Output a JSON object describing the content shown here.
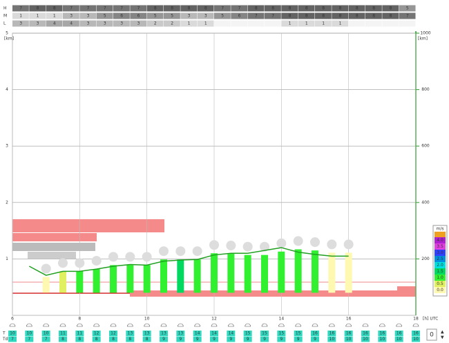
{
  "chart_data": {
    "type": "meteogram",
    "xlim": [
      6,
      18
    ],
    "xticks": [
      6,
      8,
      10,
      12,
      14,
      16,
      18
    ],
    "x_unit": "[h] UTC",
    "ylim": [
      0,
      5
    ],
    "yticks": [
      1,
      2,
      3,
      4,
      5
    ],
    "y_unit": "[km]",
    "y2lim": [
      0,
      1000
    ],
    "y2ticks": [
      200,
      400,
      600,
      800,
      1000
    ],
    "y2_unit": "[km]",
    "grid": true,
    "cloud_rows": [
      {
        "name": "H",
        "values": [
          7,
          8,
          8,
          7,
          7,
          7,
          7,
          7,
          8,
          8,
          8,
          8,
          7,
          7,
          8,
          8,
          8,
          8,
          8,
          8,
          8,
          8,
          8,
          5
        ]
      },
      {
        "name": "M",
        "values": [
          1,
          1,
          1,
          3,
          3,
          5,
          6,
          6,
          5,
          5,
          3,
          3,
          5,
          6,
          7,
          7,
          8,
          8,
          8,
          8,
          8,
          8,
          8,
          7
        ]
      },
      {
        "name": "L",
        "values": [
          3,
          3,
          4,
          4,
          3,
          3,
          3,
          3,
          2,
          2,
          1,
          1,
          null,
          null,
          null,
          null,
          1,
          1,
          1,
          1,
          null,
          null,
          null,
          null
        ]
      }
    ],
    "bars": {
      "x": [
        7,
        7.5,
        8,
        8.5,
        9,
        9.5,
        10,
        10.5,
        11,
        11.5,
        12,
        12.5,
        13,
        13.5,
        14,
        14.5,
        15,
        15.5,
        16
      ],
      "values": [
        0.68,
        0.78,
        0.78,
        0.82,
        0.89,
        0.89,
        0.89,
        0.99,
        0.99,
        0.99,
        1.1,
        1.09,
        1.07,
        1.07,
        1.13,
        1.17,
        1.15,
        1.11,
        1.11
      ],
      "base": 0.4,
      "speeds": [
        0.2,
        0.7,
        1.1,
        1.2,
        1.3,
        1.3,
        1.3,
        1.3,
        1.7,
        1.3,
        1.3,
        1.3,
        1.3,
        1.3,
        1.2,
        1.1,
        1.0,
        0.3,
        0.2
      ]
    },
    "line": {
      "color": "#1fa01f",
      "x": [
        6.5,
        7,
        7.5,
        8,
        8.5,
        9,
        9.5,
        10,
        10.5,
        11,
        11.5,
        12,
        12.5,
        13,
        13.5,
        14,
        14.5,
        15,
        15.5,
        16
      ],
      "values": [
        0.87,
        0.71,
        0.78,
        0.78,
        0.82,
        0.87,
        0.9,
        0.89,
        0.96,
        0.98,
        0.99,
        1.07,
        1.1,
        1.1,
        1.15,
        1.2,
        1.12,
        1.08,
        1.05,
        1.05
      ]
    },
    "legend": {
      "title": "m/s",
      "items": [
        {
          "value": 4,
          "label": "4.0"
        },
        {
          "value": 3.5,
          "label": "3.5"
        },
        {
          "value": 3,
          "label": "3.0"
        },
        {
          "value": 2.5,
          "label": "2.5"
        },
        {
          "value": 2,
          "label": "2.0"
        },
        {
          "value": 1.5,
          "label": "1.5"
        },
        {
          "value": 1,
          "label": "1.0"
        },
        {
          "value": 0.5,
          "label": "0.5"
        },
        {
          "value": 0,
          "label": "0.0"
        }
      ],
      "colors": [
        "#b020d0",
        "#e040e0",
        "#3040ff",
        "#0090e0",
        "#00e0e0",
        "#00d860",
        "#30f030",
        "#e0f060",
        "#fff8b0"
      ]
    },
    "temps": {
      "x": [
        6,
        6.5,
        7,
        7.5,
        8,
        8.5,
        9,
        9.5,
        10,
        10.5,
        11,
        11.5,
        12,
        12.5,
        13,
        13.5,
        14,
        14.5,
        15,
        15.5,
        16,
        16.5,
        17,
        17.5,
        18
      ],
      "rows": [
        {
          "name": "T",
          "values": [
            10,
            10,
            10,
            11,
            11,
            12,
            12,
            13,
            13,
            13,
            13,
            14,
            14,
            14,
            15,
            15,
            15,
            15,
            16,
            16,
            16,
            16,
            16,
            16,
            16
          ]
        },
        {
          "name": "Td",
          "values": [
            7,
            7,
            7,
            8,
            8,
            8,
            8,
            8,
            8,
            9,
            9,
            9,
            9,
            9,
            9,
            9,
            9,
            9,
            9,
            10,
            10,
            10,
            10,
            10,
            10
          ]
        }
      ]
    }
  },
  "controls": {
    "offset": "0"
  }
}
